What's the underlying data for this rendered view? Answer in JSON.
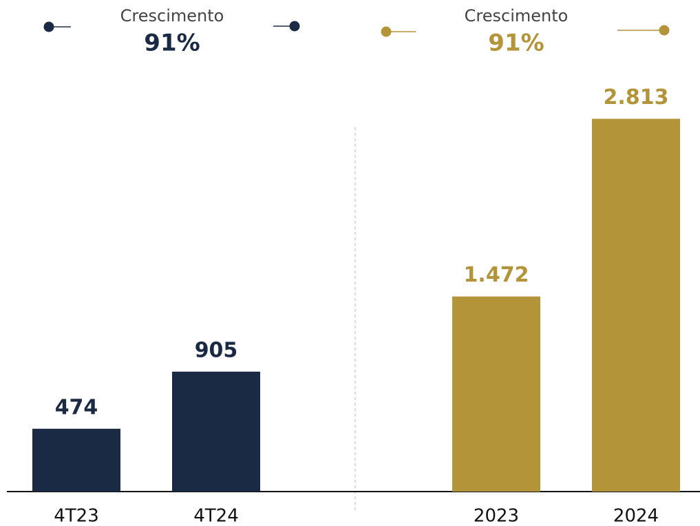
{
  "chart_data": [
    {
      "type": "bar",
      "title": "Crescimento",
      "growth": "91%",
      "color": "#1b2a44",
      "categories": [
        "4T23",
        "4T24"
      ],
      "values": [
        474,
        905
      ],
      "ylim": [
        0,
        3000
      ]
    },
    {
      "type": "bar",
      "title": "Crescimento",
      "growth": "91%",
      "color": "#b39439",
      "categories": [
        "2023",
        "2024"
      ],
      "values": [
        1472,
        2813
      ],
      "value_labels": [
        "1.472",
        "2.813"
      ],
      "ylim": [
        0,
        3000
      ]
    }
  ]
}
